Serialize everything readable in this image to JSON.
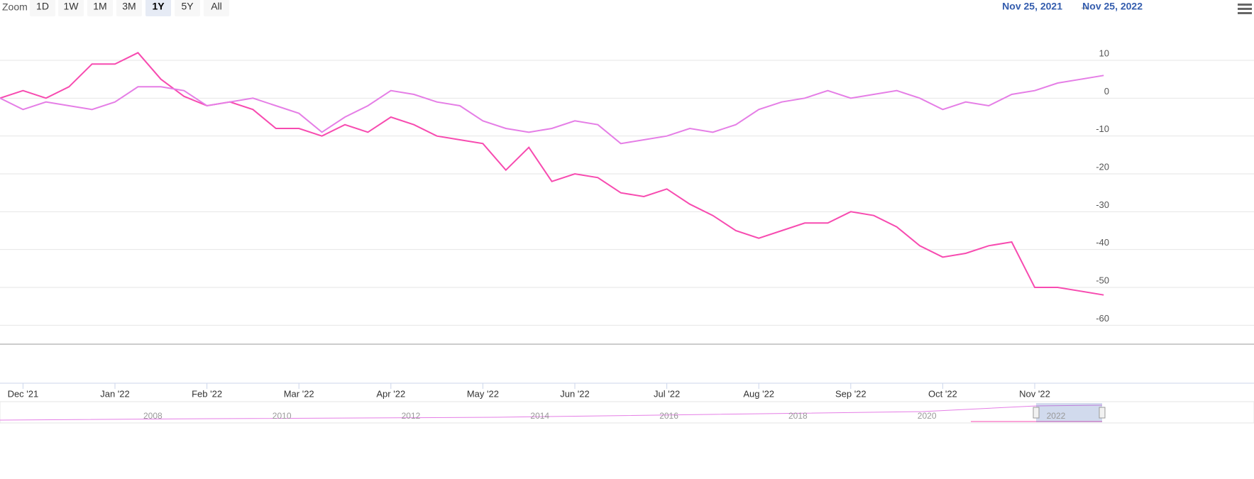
{
  "toolbar": {
    "zoom_label": "Zoom",
    "zoom_buttons": [
      "1D",
      "1W",
      "1M",
      "3M",
      "1Y",
      "5Y",
      "All"
    ],
    "selected_button": 4,
    "range": {
      "from": "Nov 25, 2021",
      "arrow": "→",
      "to": "Nov 25, 2022"
    }
  },
  "chart_data": {
    "type": "line",
    "categories": [
      null,
      "Dec '21",
      null,
      null,
      null,
      "Jan '22",
      null,
      null,
      null,
      "Feb '22",
      null,
      null,
      null,
      "Mar '22",
      null,
      null,
      null,
      "Apr '22",
      null,
      null,
      null,
      "May '22",
      null,
      null,
      null,
      "Jun '22",
      null,
      null,
      null,
      "Jul '22",
      null,
      null,
      null,
      "Aug '22",
      null,
      null,
      null,
      "Sep '22",
      null,
      null,
      null,
      "Oct '22",
      null,
      null,
      null,
      "Nov '22",
      null,
      null,
      null
    ],
    "series": [
      {
        "color": "#f74bb0",
        "values": [
          0,
          2,
          0,
          3,
          9,
          9,
          12,
          5,
          0.5,
          -2,
          -1,
          -3,
          -8,
          -8,
          -10,
          -7,
          -9,
          -5,
          -7,
          -10,
          -11,
          -12,
          -19,
          -13,
          -22,
          -20,
          -21,
          -25,
          -26,
          -24,
          -28,
          -31,
          -35,
          -37,
          -35,
          -33,
          -33,
          -30,
          -31,
          -34,
          -39,
          -42,
          -41,
          -39,
          -38,
          -50,
          -50,
          -51,
          -52
        ]
      },
      {
        "color": "#e57ee6",
        "values": [
          0,
          -3,
          -1,
          -2,
          -3,
          -1,
          3,
          3,
          2,
          -2,
          -1,
          0,
          -2,
          -4,
          -9,
          -5,
          -2,
          2,
          1,
          -1,
          -2,
          -6,
          -8,
          -9,
          -8,
          -6,
          -7,
          -12,
          -11,
          -10,
          -8,
          -9,
          -7,
          -3,
          -1,
          0,
          2,
          0,
          1,
          2,
          0,
          -3,
          -1,
          -2,
          1,
          2,
          4,
          5,
          6
        ]
      }
    ],
    "ylim": [
      -65,
      19
    ],
    "yticks": [
      -60,
      -50,
      -40,
      -30,
      -20,
      -10,
      0,
      10
    ],
    "grid": true
  },
  "navigator": {
    "labels": [
      "2008",
      "2010",
      "2012",
      "2014",
      "2016",
      "2018",
      "2020",
      "2022"
    ]
  }
}
